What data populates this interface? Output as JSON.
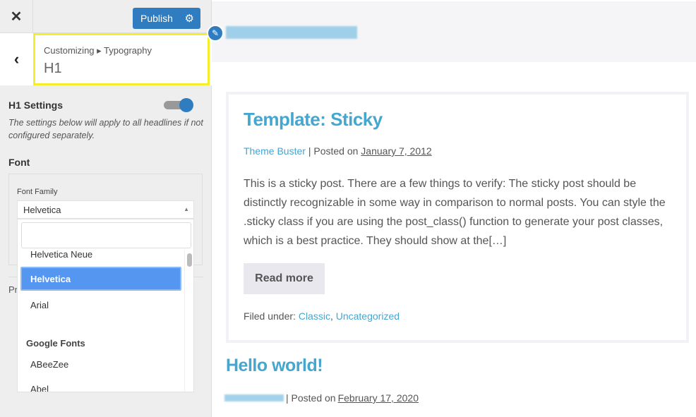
{
  "sidebar": {
    "close_icon": "close-icon",
    "publish_label": "Publish",
    "gear_icon": "gear-icon",
    "breadcrumb": "Customizing ▸ Typography",
    "section_title": "H1",
    "settings_title": "H1 Settings",
    "settings_enabled": true,
    "settings_desc": "The settings below will apply to all headlines if not configured separately.",
    "font_label": "Font",
    "font_family_label": "Font Family",
    "font_family_value": "Helvetica",
    "search_value": "",
    "partial_label": "Pr",
    "options": [
      "Helvetica Neue",
      "Helvetica",
      "Arial"
    ],
    "group_label": "Google Fonts",
    "google_options": [
      "ABeeZee",
      "Abel"
    ]
  },
  "preview": {
    "post1": {
      "title": "Template: Sticky",
      "author": "Theme Buster",
      "posted_on": "| Posted on",
      "date": "January 7, 2012",
      "excerpt": "This is a sticky post. There are a few things to verify: The sticky post should be distinctly recognizable in some way in comparison to normal posts. You can style the .sticky class if you are using the post_class() function to generate your post classes, which is a best practice. They should show at the[…]",
      "read_more": "Read more",
      "filed_under": "Filed under:",
      "cat1": "Classic",
      "sep": ", ",
      "cat2": "Uncategorized"
    },
    "post2": {
      "title": "Hello world!",
      "posted_on": "| Posted on",
      "date": "February 17, 2020"
    }
  },
  "colors": {
    "accent": "#2f7dc0",
    "link": "#45a6d0",
    "highlight": "#f4ee2c",
    "selected_option": "#5596f0"
  }
}
